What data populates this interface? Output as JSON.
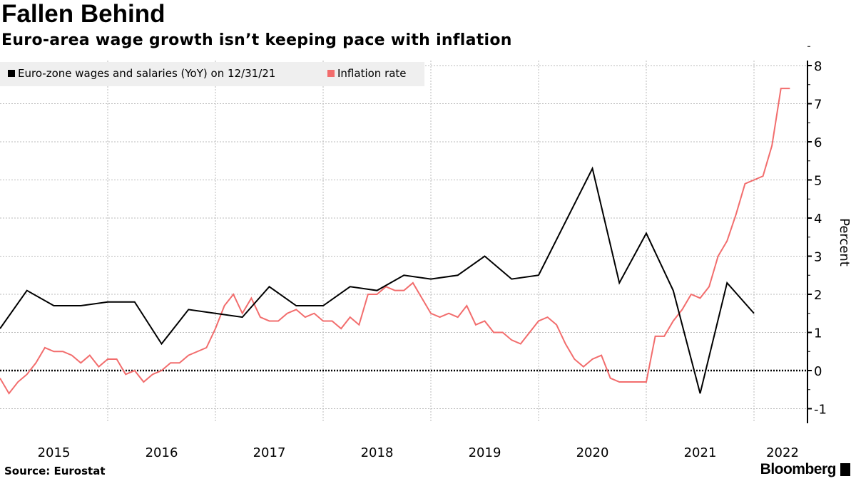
{
  "header": {
    "title": "Fallen Behind",
    "subtitle": "Euro-area wage growth isn’t keeping pace with inflation"
  },
  "footer": {
    "source": "Source: Eurostat",
    "brand": "Bloomberg"
  },
  "chart_data": {
    "type": "line",
    "title": "Fallen Behind",
    "subtitle": "Euro-area wage growth isn’t keeping pace with inflation",
    "xlabel": "",
    "ylabel": "Percent",
    "ylim": [
      -1.3,
      8.2
    ],
    "yticks": [
      -1,
      0,
      1,
      2,
      3,
      4,
      5,
      6,
      7,
      8
    ],
    "x_tick_labels": [
      "2015",
      "2016",
      "2017",
      "2018",
      "2019",
      "2020",
      "2021",
      "2022"
    ],
    "x_unit": "months since Dec 2014",
    "grid": true,
    "legend_position": "top-left",
    "series": [
      {
        "name": "Euro-zone wages and salaries (YoY) on 12/31/21",
        "color": "#000000",
        "frequency": "quarterly",
        "x": [
          0,
          3,
          6,
          9,
          12,
          15,
          18,
          21,
          24,
          27,
          30,
          33,
          36,
          39,
          42,
          45,
          48,
          51,
          54,
          57,
          60,
          63,
          66,
          69,
          72,
          75,
          78,
          81,
          84
        ],
        "values": [
          1.1,
          2.1,
          1.7,
          1.7,
          1.8,
          1.8,
          0.7,
          1.6,
          1.5,
          1.4,
          2.2,
          1.7,
          1.7,
          2.2,
          2.1,
          2.5,
          2.4,
          2.5,
          3.0,
          2.4,
          2.5,
          3.9,
          5.3,
          2.3,
          3.6,
          2.1,
          -0.6,
          2.3,
          1.5
        ]
      },
      {
        "name": "Inflation rate",
        "color": "#f26d6d",
        "frequency": "monthly",
        "values": [
          -0.2,
          -0.6,
          -0.3,
          -0.1,
          0.2,
          0.6,
          0.5,
          0.5,
          0.4,
          0.2,
          0.4,
          0.1,
          0.3,
          0.3,
          -0.1,
          0.0,
          -0.3,
          -0.1,
          0.0,
          0.2,
          0.2,
          0.4,
          0.5,
          0.6,
          1.1,
          1.7,
          2.0,
          1.5,
          1.9,
          1.4,
          1.3,
          1.3,
          1.5,
          1.6,
          1.4,
          1.5,
          1.3,
          1.3,
          1.1,
          1.4,
          1.2,
          2.0,
          2.0,
          2.2,
          2.1,
          2.1,
          2.3,
          1.9,
          1.5,
          1.4,
          1.5,
          1.4,
          1.7,
          1.2,
          1.3,
          1.0,
          1.0,
          0.8,
          0.7,
          1.0,
          1.3,
          1.4,
          1.2,
          0.7,
          0.3,
          0.1,
          0.3,
          0.4,
          -0.2,
          -0.3,
          -0.3,
          -0.3,
          -0.3,
          0.9,
          0.9,
          1.3,
          1.6,
          2.0,
          1.9,
          2.2,
          3.0,
          3.4,
          4.1,
          4.9,
          5.0,
          5.1,
          5.9,
          7.4,
          7.4
        ]
      }
    ]
  }
}
